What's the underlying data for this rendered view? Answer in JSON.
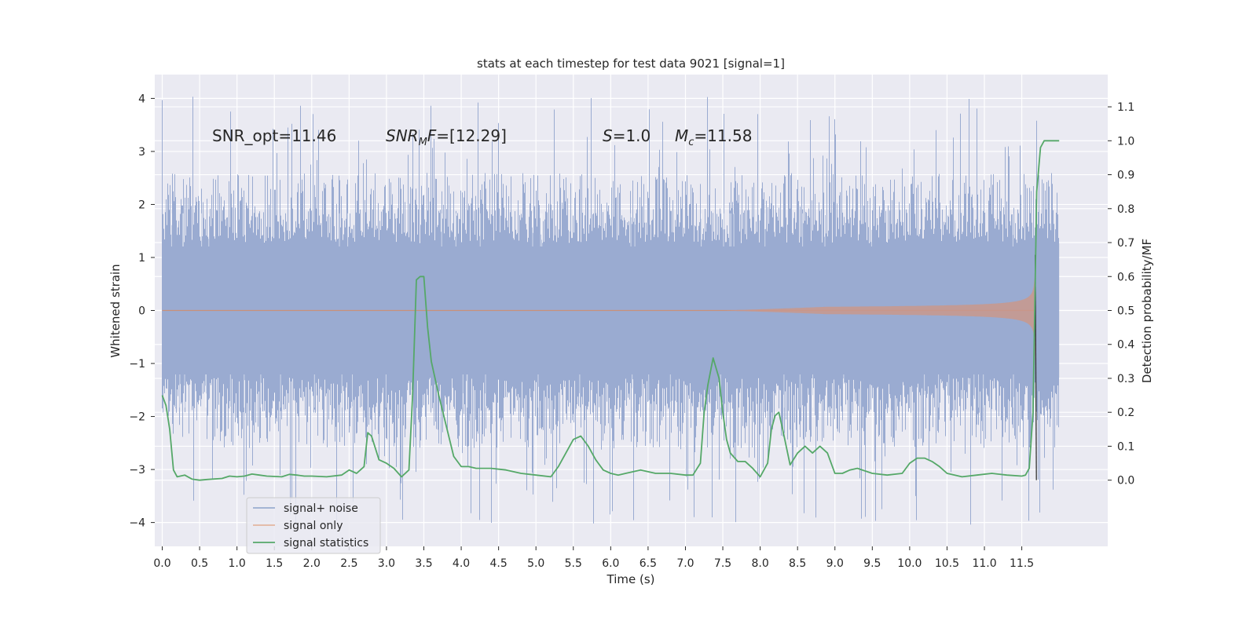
{
  "chart_data": {
    "type": "line",
    "title": "stats at each timestep for test data 9021 [signal=1]",
    "xlabel": "Time (s)",
    "ylabel_left": "Whitened strain",
    "ylabel_right": "Detection probability/MF",
    "xlim": [
      -0.1,
      12.65
    ],
    "ylim_left": [
      -4.45,
      4.45
    ],
    "ylim_right": [
      -0.195,
      1.195
    ],
    "xticks": [
      0.0,
      0.5,
      1.0,
      1.5,
      2.0,
      2.5,
      3.0,
      3.5,
      4.0,
      4.5,
      5.0,
      5.5,
      6.0,
      6.5,
      7.0,
      7.5,
      8.0,
      8.5,
      9.0,
      9.5,
      10.0,
      10.5,
      11.0,
      11.5
    ],
    "yticks_left": [
      -4,
      -3,
      -2,
      -1,
      0,
      1,
      2,
      3,
      4
    ],
    "yticks_right": [
      0.0,
      0.1,
      0.2,
      0.3,
      0.4,
      0.5,
      0.6,
      0.7,
      0.8,
      0.9,
      1.0,
      1.1
    ],
    "grid": true,
    "legend_position": "lower-left",
    "annotations": [
      {
        "text": "SNR_opt=11.46",
        "x": 0.2,
        "y": 3.2
      },
      {
        "text": "SNR_MF=[12.29]",
        "x": 2.6,
        "y": 3.2
      },
      {
        "text": "S=1.0",
        "x": 5.6,
        "y": 3.2
      },
      {
        "text": "M_c=11.58",
        "x": 6.6,
        "y": 3.2
      }
    ],
    "series": [
      {
        "name": "signal+ noise",
        "axis": "left",
        "color": "#4c72b0",
        "t_start": 0.0,
        "t_end": 12.0,
        "envelope": {
          "core": 1.27,
          "mid": 1.93,
          "peak_typical": 2.6,
          "peak_max": 4.05
        }
      },
      {
        "name": "signal only",
        "axis": "left",
        "color": "#dd8452",
        "chirp": {
          "t_start": 7.5,
          "t_merge": 11.68,
          "amp_early": 0.06,
          "amp_merge": 1.05
        }
      },
      {
        "name": "signal statistics",
        "axis": "right",
        "color": "#55a868",
        "x": [
          0.0,
          0.05,
          0.1,
          0.15,
          0.2,
          0.3,
          0.4,
          0.5,
          0.6,
          0.8,
          0.9,
          1.0,
          1.1,
          1.2,
          1.3,
          1.4,
          1.6,
          1.7,
          1.8,
          1.9,
          2.0,
          2.2,
          2.4,
          2.5,
          2.6,
          2.7,
          2.75,
          2.8,
          2.9,
          3.0,
          3.1,
          3.2,
          3.3,
          3.35,
          3.4,
          3.45,
          3.5,
          3.55,
          3.6,
          3.7,
          3.8,
          3.9,
          4.0,
          4.1,
          4.2,
          4.4,
          4.6,
          4.8,
          5.0,
          5.2,
          5.3,
          5.4,
          5.5,
          5.6,
          5.7,
          5.8,
          5.9,
          6.0,
          6.1,
          6.2,
          6.4,
          6.6,
          6.8,
          7.0,
          7.1,
          7.2,
          7.25,
          7.3,
          7.37,
          7.45,
          7.5,
          7.55,
          7.6,
          7.7,
          7.8,
          7.9,
          8.0,
          8.1,
          8.15,
          8.2,
          8.25,
          8.3,
          8.4,
          8.5,
          8.6,
          8.7,
          8.8,
          8.9,
          9.0,
          9.1,
          9.2,
          9.3,
          9.5,
          9.7,
          9.9,
          10.0,
          10.1,
          10.2,
          10.3,
          10.4,
          10.5,
          10.7,
          10.9,
          11.1,
          11.3,
          11.5,
          11.55,
          11.6,
          11.65,
          11.7,
          11.75,
          11.8,
          11.9,
          12.0
        ],
        "y": [
          0.25,
          0.22,
          0.15,
          0.03,
          0.01,
          0.015,
          0.003,
          0.0,
          0.002,
          0.005,
          0.012,
          0.01,
          0.012,
          0.018,
          0.015,
          0.012,
          0.01,
          0.017,
          0.015,
          0.012,
          0.012,
          0.01,
          0.015,
          0.03,
          0.02,
          0.04,
          0.14,
          0.13,
          0.06,
          0.05,
          0.035,
          0.01,
          0.03,
          0.25,
          0.59,
          0.6,
          0.6,
          0.45,
          0.35,
          0.25,
          0.16,
          0.07,
          0.04,
          0.04,
          0.035,
          0.035,
          0.03,
          0.02,
          0.015,
          0.01,
          0.04,
          0.08,
          0.12,
          0.13,
          0.1,
          0.06,
          0.03,
          0.02,
          0.015,
          0.02,
          0.03,
          0.02,
          0.02,
          0.015,
          0.015,
          0.05,
          0.2,
          0.28,
          0.36,
          0.3,
          0.2,
          0.12,
          0.08,
          0.055,
          0.055,
          0.035,
          0.01,
          0.05,
          0.15,
          0.19,
          0.2,
          0.15,
          0.045,
          0.08,
          0.1,
          0.08,
          0.1,
          0.08,
          0.02,
          0.02,
          0.03,
          0.035,
          0.02,
          0.015,
          0.02,
          0.05,
          0.065,
          0.065,
          0.055,
          0.04,
          0.02,
          0.01,
          0.015,
          0.02,
          0.015,
          0.012,
          0.015,
          0.035,
          0.2,
          0.85,
          0.98,
          1.0,
          1.0,
          1.0
        ]
      }
    ]
  }
}
